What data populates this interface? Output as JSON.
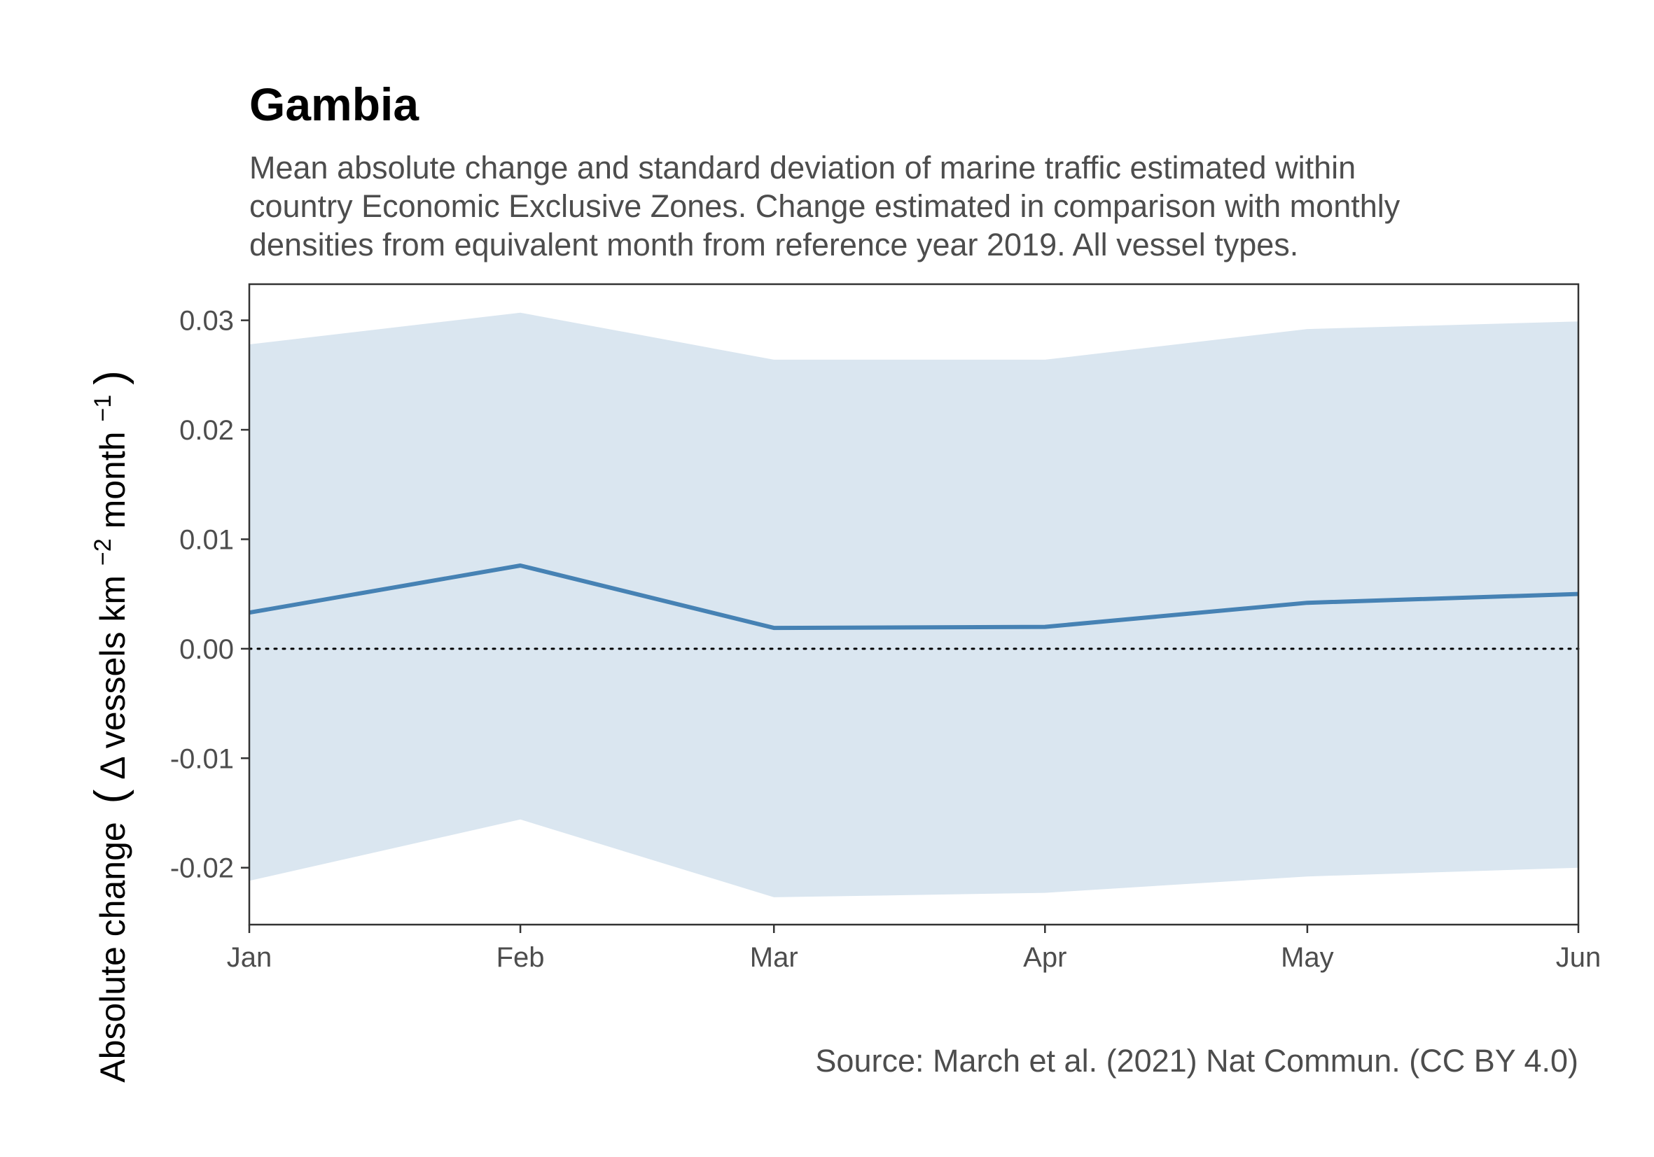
{
  "chart_data": {
    "type": "line",
    "title": "Gambia",
    "subtitle_lines": [
      "Mean absolute change and standard deviation of marine traffic estimated within",
      "country Economic Exclusive Zones. Change estimated in comparison with monthly",
      "densities from equivalent month from reference year 2019. All vessel types."
    ],
    "ylabel_parts": {
      "main": "Absolute change",
      "open": "(",
      "delta": "Δ",
      "unit_a": " vessels km",
      "sup_a": "−2",
      "unit_b": " month",
      "sup_b": "−1",
      "close": ")"
    },
    "caption": "Source: March et al. (2021) Nat Commun. (CC BY 4.0)",
    "x_dates": [
      "2020-01-01",
      "2020-02-01",
      "2020-03-01",
      "2020-04-01",
      "2020-05-01",
      "2020-06-01"
    ],
    "x_tick_labels": [
      "Jan",
      "Feb",
      "Mar",
      "Apr",
      "May",
      "Jun"
    ],
    "series": [
      {
        "values": [
          0.0033,
          0.0076,
          0.0019,
          0.002,
          0.0042,
          0.005
        ],
        "sd_upper": [
          0.0278,
          0.0307,
          0.0264,
          0.0264,
          0.0292,
          0.0299
        ],
        "sd_lower": [
          -0.0212,
          -0.0156,
          -0.0227,
          -0.0223,
          -0.0208,
          -0.02
        ]
      }
    ],
    "y_ticks": [
      -0.02,
      -0.01,
      0.0,
      0.01,
      0.02,
      0.03
    ],
    "y_tick_labels": [
      "-0.02",
      "-0.01",
      "0.00",
      "0.01",
      "0.02",
      "0.03"
    ],
    "ylim": [
      -0.0252,
      0.0333
    ],
    "reference_line": 0,
    "grid": false,
    "colors": {
      "line": "#4682b4",
      "band": "#dae6f0",
      "reference": "#000000",
      "frame": "#333333"
    }
  }
}
